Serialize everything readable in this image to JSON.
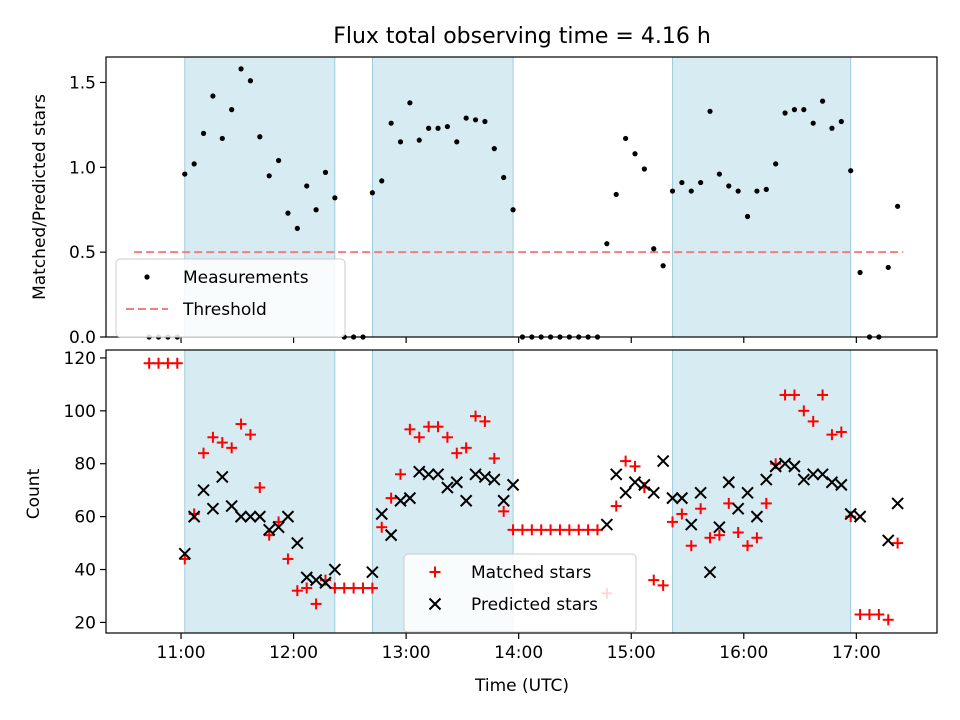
{
  "chart_data": {
    "title": "Flux total observing time = 4.16 h",
    "xlabel": "Time (UTC)",
    "x_ticks": [
      "11:00",
      "12:00",
      "13:00",
      "14:00",
      "15:00",
      "16:00",
      "17:00"
    ],
    "x_range": [
      "10:20",
      "17:43"
    ],
    "shaded_intervals": [
      [
        "11:02",
        "12:22"
      ],
      [
        "12:42",
        "13:57"
      ],
      [
        "15:22",
        "16:57"
      ]
    ],
    "shade_color": "#add8e6",
    "panels": [
      {
        "type": "scatter",
        "ylabel": "Matched/Predicted stars",
        "ylim": [
          0,
          1.65
        ],
        "y_ticks": [
          "0.0",
          "0.5",
          "1.0",
          "1.5"
        ],
        "legend_position": "lower-left",
        "threshold": {
          "name": "Threshold",
          "value": 0.5,
          "x": [
            "10:35",
            "17:25"
          ],
          "color": "#f08080"
        },
        "series": [
          {
            "name": "Measurements",
            "color": "#000000",
            "points": [
              [
                "10:43",
                0.0
              ],
              [
                "10:48",
                0.0
              ],
              [
                "10:53",
                0.0
              ],
              [
                "10:58",
                0.0
              ],
              [
                "11:02",
                0.96
              ],
              [
                "11:07",
                1.02
              ],
              [
                "11:12",
                1.2
              ],
              [
                "11:17",
                1.42
              ],
              [
                "11:22",
                1.17
              ],
              [
                "11:27",
                1.34
              ],
              [
                "11:32",
                1.58
              ],
              [
                "11:37",
                1.51
              ],
              [
                "11:42",
                1.18
              ],
              [
                "11:47",
                0.95
              ],
              [
                "11:52",
                1.04
              ],
              [
                "11:57",
                0.73
              ],
              [
                "12:02",
                0.64
              ],
              [
                "12:07",
                0.89
              ],
              [
                "12:12",
                0.75
              ],
              [
                "12:17",
                0.97
              ],
              [
                "12:22",
                0.82
              ],
              [
                "12:27",
                0.0
              ],
              [
                "12:32",
                0.0
              ],
              [
                "12:37",
                0.0
              ],
              [
                "12:42",
                0.85
              ],
              [
                "12:47",
                0.92
              ],
              [
                "12:52",
                1.26
              ],
              [
                "12:57",
                1.15
              ],
              [
                "13:02",
                1.38
              ],
              [
                "13:07",
                1.16
              ],
              [
                "13:12",
                1.23
              ],
              [
                "13:17",
                1.23
              ],
              [
                "13:22",
                1.24
              ],
              [
                "13:27",
                1.15
              ],
              [
                "13:32",
                1.29
              ],
              [
                "13:37",
                1.28
              ],
              [
                "13:42",
                1.27
              ],
              [
                "13:47",
                1.11
              ],
              [
                "13:52",
                0.94
              ],
              [
                "13:57",
                0.75
              ],
              [
                "14:02",
                0.0
              ],
              [
                "14:07",
                0.0
              ],
              [
                "14:12",
                0.0
              ],
              [
                "14:17",
                0.0
              ],
              [
                "14:22",
                0.0
              ],
              [
                "14:27",
                0.0
              ],
              [
                "14:32",
                0.0
              ],
              [
                "14:37",
                0.0
              ],
              [
                "14:42",
                0.0
              ],
              [
                "14:47",
                0.55
              ],
              [
                "14:52",
                0.84
              ],
              [
                "14:57",
                1.17
              ],
              [
                "15:02",
                1.08
              ],
              [
                "15:07",
                0.99
              ],
              [
                "15:12",
                0.52
              ],
              [
                "15:17",
                0.42
              ],
              [
                "15:22",
                0.86
              ],
              [
                "15:27",
                0.91
              ],
              [
                "15:32",
                0.86
              ],
              [
                "15:37",
                0.91
              ],
              [
                "15:42",
                1.33
              ],
              [
                "15:47",
                0.96
              ],
              [
                "15:52",
                0.89
              ],
              [
                "15:57",
                0.86
              ],
              [
                "16:02",
                0.71
              ],
              [
                "16:07",
                0.86
              ],
              [
                "16:12",
                0.87
              ],
              [
                "16:17",
                1.02
              ],
              [
                "16:22",
                1.32
              ],
              [
                "16:27",
                1.34
              ],
              [
                "16:32",
                1.34
              ],
              [
                "16:37",
                1.26
              ],
              [
                "16:42",
                1.39
              ],
              [
                "16:47",
                1.23
              ],
              [
                "16:52",
                1.27
              ],
              [
                "16:57",
                0.98
              ],
              [
                "17:02",
                0.38
              ],
              [
                "17:07",
                0.0
              ],
              [
                "17:12",
                0.0
              ],
              [
                "17:17",
                0.41
              ],
              [
                "17:22",
                0.77
              ]
            ]
          }
        ]
      },
      {
        "type": "scatter",
        "ylabel": "Count",
        "ylim": [
          16,
          123
        ],
        "y_ticks": [
          "20",
          "40",
          "60",
          "80",
          "100",
          "120"
        ],
        "legend_position": "lower-center",
        "series": [
          {
            "name": "Matched stars",
            "marker": "plus",
            "color": "#ff0000",
            "points": [
              [
                "10:43",
                118
              ],
              [
                "10:48",
                118
              ],
              [
                "10:53",
                118
              ],
              [
                "10:58",
                118
              ],
              [
                "11:02",
                44
              ],
              [
                "11:07",
                61
              ],
              [
                "11:12",
                84
              ],
              [
                "11:17",
                90
              ],
              [
                "11:22",
                88
              ],
              [
                "11:27",
                86
              ],
              [
                "11:32",
                95
              ],
              [
                "11:37",
                91
              ],
              [
                "11:42",
                71
              ],
              [
                "11:47",
                53
              ],
              [
                "11:52",
                58
              ],
              [
                "11:57",
                44
              ],
              [
                "12:02",
                32
              ],
              [
                "12:07",
                33
              ],
              [
                "12:12",
                27
              ],
              [
                "12:17",
                36
              ],
              [
                "12:22",
                33
              ],
              [
                "12:27",
                33
              ],
              [
                "12:32",
                33
              ],
              [
                "12:37",
                33
              ],
              [
                "12:42",
                33
              ],
              [
                "12:47",
                56
              ],
              [
                "12:52",
                67
              ],
              [
                "12:57",
                76
              ],
              [
                "13:02",
                93
              ],
              [
                "13:07",
                90
              ],
              [
                "13:12",
                94
              ],
              [
                "13:17",
                94
              ],
              [
                "13:22",
                90
              ],
              [
                "13:27",
                84
              ],
              [
                "13:32",
                86
              ],
              [
                "13:37",
                98
              ],
              [
                "13:42",
                96
              ],
              [
                "13:47",
                82
              ],
              [
                "13:52",
                62
              ],
              [
                "13:57",
                55
              ],
              [
                "14:02",
                55
              ],
              [
                "14:07",
                55
              ],
              [
                "14:12",
                55
              ],
              [
                "14:17",
                55
              ],
              [
                "14:22",
                55
              ],
              [
                "14:27",
                55
              ],
              [
                "14:32",
                55
              ],
              [
                "14:37",
                55
              ],
              [
                "14:42",
                55
              ],
              [
                "14:47",
                31
              ],
              [
                "14:52",
                64
              ],
              [
                "14:57",
                81
              ],
              [
                "15:02",
                79
              ],
              [
                "15:07",
                71
              ],
              [
                "15:12",
                36
              ],
              [
                "15:17",
                34
              ],
              [
                "15:22",
                58
              ],
              [
                "15:27",
                61
              ],
              [
                "15:32",
                49
              ],
              [
                "15:37",
                63
              ],
              [
                "15:42",
                52
              ],
              [
                "15:47",
                53
              ],
              [
                "15:52",
                65
              ],
              [
                "15:57",
                54
              ],
              [
                "16:02",
                49
              ],
              [
                "16:07",
                52
              ],
              [
                "16:12",
                65
              ],
              [
                "16:17",
                80
              ],
              [
                "16:22",
                106
              ],
              [
                "16:27",
                106
              ],
              [
                "16:32",
                100
              ],
              [
                "16:37",
                96
              ],
              [
                "16:42",
                106
              ],
              [
                "16:47",
                91
              ],
              [
                "16:52",
                92
              ],
              [
                "16:57",
                60
              ],
              [
                "17:02",
                23
              ],
              [
                "17:07",
                23
              ],
              [
                "17:12",
                23
              ],
              [
                "17:17",
                21
              ],
              [
                "17:22",
                50
              ]
            ]
          },
          {
            "name": "Predicted stars",
            "marker": "x",
            "color": "#000000",
            "points": [
              [
                "11:02",
                46
              ],
              [
                "11:07",
                60
              ],
              [
                "11:12",
                70
              ],
              [
                "11:17",
                63
              ],
              [
                "11:22",
                75
              ],
              [
                "11:27",
                64
              ],
              [
                "11:32",
                60
              ],
              [
                "11:37",
                60
              ],
              [
                "11:42",
                60
              ],
              [
                "11:47",
                55
              ],
              [
                "11:52",
                56
              ],
              [
                "11:57",
                60
              ],
              [
                "12:02",
                50
              ],
              [
                "12:07",
                37
              ],
              [
                "12:12",
                36
              ],
              [
                "12:17",
                35
              ],
              [
                "12:22",
                40
              ],
              [
                "12:42",
                39
              ],
              [
                "12:47",
                61
              ],
              [
                "12:52",
                53
              ],
              [
                "12:57",
                66
              ],
              [
                "13:02",
                67
              ],
              [
                "13:07",
                77
              ],
              [
                "13:12",
                76
              ],
              [
                "13:17",
                76
              ],
              [
                "13:22",
                71
              ],
              [
                "13:27",
                73
              ],
              [
                "13:32",
                66
              ],
              [
                "13:37",
                76
              ],
              [
                "13:42",
                75
              ],
              [
                "13:47",
                74
              ],
              [
                "13:52",
                66
              ],
              [
                "13:57",
                72
              ],
              [
                "14:47",
                57
              ],
              [
                "14:52",
                76
              ],
              [
                "14:57",
                69
              ],
              [
                "15:02",
                73
              ],
              [
                "15:07",
                72
              ],
              [
                "15:12",
                69
              ],
              [
                "15:17",
                81
              ],
              [
                "15:22",
                67
              ],
              [
                "15:27",
                67
              ],
              [
                "15:32",
                57
              ],
              [
                "15:37",
                69
              ],
              [
                "15:42",
                39
              ],
              [
                "15:47",
                56
              ],
              [
                "15:52",
                73
              ],
              [
                "15:57",
                63
              ],
              [
                "16:02",
                69
              ],
              [
                "16:07",
                60
              ],
              [
                "16:12",
                74
              ],
              [
                "16:17",
                79
              ],
              [
                "16:22",
                80
              ],
              [
                "16:27",
                79
              ],
              [
                "16:32",
                74
              ],
              [
                "16:37",
                76
              ],
              [
                "16:42",
                76
              ],
              [
                "16:47",
                73
              ],
              [
                "16:52",
                72
              ],
              [
                "16:57",
                61
              ],
              [
                "17:02",
                60
              ],
              [
                "17:17",
                51
              ],
              [
                "17:22",
                65
              ]
            ]
          }
        ]
      }
    ]
  }
}
